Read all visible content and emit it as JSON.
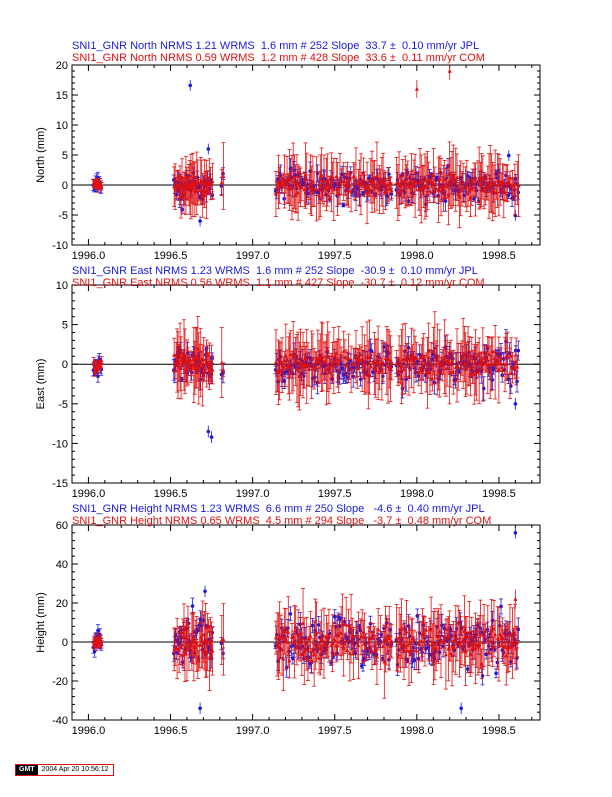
{
  "chart_data": [
    {
      "type": "scatter",
      "component": "north",
      "titles": [
        {
          "text": "SNI1_GNR North NRMS 1.21 WRMS  1.6 mm # 252 Slope  33.7 ±  0.10 mm/yr JPL",
          "color": "#1a1adc"
        },
        {
          "text": "SNI1_GNR North NRMS 0.59 WRMS  1.2 mm # 428 Slope  33.6 ±  0.11 mm/yr COM",
          "color": "#e01010"
        }
      ],
      "ylabel": "North (mm)",
      "xlim": [
        1995.9,
        1998.75
      ],
      "ylim": [
        -10,
        20
      ],
      "xticks": [
        "1996.0",
        "1996.5",
        "1997.0",
        "1997.5",
        "1998.0",
        "1998.5"
      ],
      "yticks": [
        -10,
        -5,
        0,
        5,
        10,
        15,
        20
      ],
      "series": [
        {
          "source": "JPL",
          "color": "#1a1adc",
          "marker": "circle",
          "count": 252,
          "wrms": 1.6,
          "max_outliers": [
            [
              1996.62,
              16.6
            ],
            [
              1996.73,
              6.0
            ],
            [
              1998.56,
              4.9
            ]
          ],
          "min_outliers": [
            [
              1996.68,
              -6.0
            ],
            [
              1996.57,
              -4.1
            ],
            [
              1998.6,
              -5.1
            ]
          ]
        },
        {
          "source": "COM",
          "color": "#e01010",
          "marker": "triangle",
          "count": 428,
          "wrms": 1.2,
          "max_outliers": [
            [
              1998.0,
              16.0
            ],
            [
              1998.2,
              19.0
            ]
          ],
          "min_outliers": [
            [
              1998.6,
              -1.7
            ]
          ]
        }
      ]
    },
    {
      "type": "scatter",
      "component": "east",
      "titles": [
        {
          "text": "SNI1_GNR East NRMS 1.23 WRMS  1.6 mm # 252 Slope  -30.9 ±  0.10 mm/yr JPL",
          "color": "#1a1adc"
        },
        {
          "text": "SNI1_GNR East NRMS 0.56 WRMS  1.1 mm # 427 Slope  -30.7 ±  0.12 mm/yr COM",
          "color": "#e01010"
        }
      ],
      "ylabel": "East (mm)",
      "xlim": [
        1995.9,
        1998.75
      ],
      "ylim": [
        -15,
        10
      ],
      "xticks": [
        "1996.0",
        "1996.5",
        "1997.0",
        "1997.5",
        "1998.0",
        "1998.5"
      ],
      "yticks": [
        -15,
        -10,
        -5,
        0,
        5,
        10
      ],
      "series": [
        {
          "source": "JPL",
          "color": "#1a1adc",
          "marker": "circle",
          "count": 252,
          "wrms": 1.6,
          "max_outliers": [
            [
              1996.72,
              2.0
            ]
          ],
          "min_outliers": [
            [
              1996.73,
              -8.5
            ],
            [
              1996.75,
              -9.2
            ],
            [
              1998.6,
              -5.0
            ]
          ]
        },
        {
          "source": "COM",
          "color": "#e01010",
          "marker": "triangle",
          "count": 427,
          "wrms": 1.1,
          "max_outliers": [],
          "min_outliers": []
        }
      ]
    },
    {
      "type": "scatter",
      "component": "height",
      "titles": [
        {
          "text": "SNI1_GNR Height NRMS 1.23 WRMS  6.6 mm # 250 Slope   -4.6 ±  0.40 mm/yr JPL",
          "color": "#1a1adc"
        },
        {
          "text": "SNI1_GNR Height NRMS 0.65 WRMS  4.5 mm # 294 Slope   -3.7 ±  0.48 mm/yr COM",
          "color": "#e01010"
        }
      ],
      "ylabel": "Height (mm)",
      "xlim": [
        1995.9,
        1998.75
      ],
      "ylim": [
        -40,
        60
      ],
      "xticks": [
        "1996.0",
        "1996.5",
        "1997.0",
        "1997.5",
        "1998.0",
        "1998.5"
      ],
      "yticks": [
        -40,
        -20,
        0,
        20,
        40,
        60
      ],
      "series": [
        {
          "source": "JPL",
          "color": "#1a1adc",
          "marker": "circle",
          "count": 250,
          "wrms": 6.6,
          "max_outliers": [
            [
              1998.6,
              56.0
            ],
            [
              1996.71,
              26.0
            ]
          ],
          "min_outliers": [
            [
              1998.27,
              -34.0
            ],
            [
              1996.68,
              -34.0
            ]
          ]
        },
        {
          "source": "COM",
          "color": "#e01010",
          "marker": "triangle",
          "count": 294,
          "wrms": 4.5,
          "max_outliers": [
            [
              1998.6,
              22.0
            ]
          ],
          "min_outliers": []
        }
      ]
    }
  ],
  "footer": {
    "logo": "GMT",
    "timestamp": "2004 Apr 20 10:56:12"
  }
}
